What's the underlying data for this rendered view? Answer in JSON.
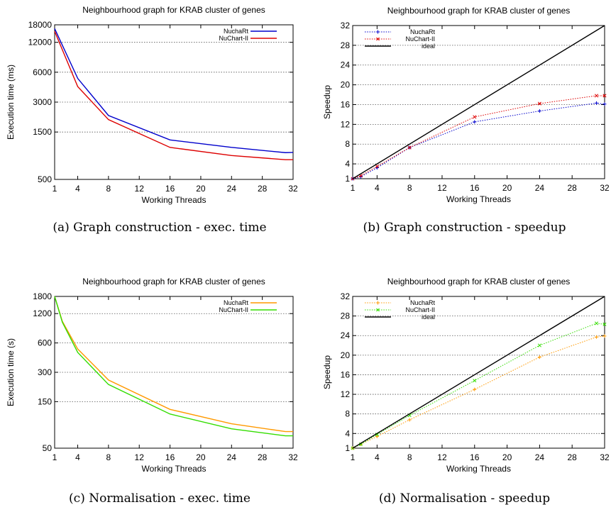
{
  "chart_data": [
    {
      "type": "line",
      "title": "Neighbourhood graph for KRAB cluster of genes",
      "xlabel": "Working Threads",
      "ylabel": "Execution time (ms)",
      "caption": "(a) Graph construction - exec. time",
      "yscale": "log",
      "xlim": [
        1,
        32
      ],
      "ylim": [
        500,
        18000
      ],
      "xticks": [
        1,
        4,
        8,
        12,
        16,
        20,
        24,
        28,
        32
      ],
      "yticks": [
        500,
        1500,
        3000,
        6000,
        12000,
        18000
      ],
      "grid": true,
      "legend_position": "top-right",
      "series": [
        {
          "name": "NuchaRt",
          "color": "#0000cc",
          "x": [
            1,
            4,
            8,
            16,
            24,
            31,
            32
          ],
          "y": [
            16500,
            5200,
            2200,
            1250,
            1050,
            930,
            935
          ]
        },
        {
          "name": "NuChart-II",
          "color": "#dd0000",
          "x": [
            1,
            4,
            8,
            16,
            24,
            31,
            32
          ],
          "y": [
            15500,
            4300,
            2000,
            1050,
            870,
            790,
            790
          ]
        }
      ]
    },
    {
      "type": "line",
      "title": "Neighbourhood graph for KRAB cluster of genes",
      "xlabel": "Working Threads",
      "ylabel": "Speedup",
      "caption": "(b) Graph construction - speedup",
      "yscale": "linear",
      "xlim": [
        1,
        32
      ],
      "ylim": [
        1,
        32
      ],
      "xticks": [
        1,
        4,
        8,
        12,
        16,
        20,
        24,
        28,
        32
      ],
      "yticks": [
        1,
        4,
        8,
        12,
        16,
        20,
        24,
        28,
        32
      ],
      "grid": true,
      "legend_position": "top-left",
      "series": [
        {
          "name": "NuchaRt",
          "color": "#0000cc",
          "style": "dotted",
          "marker": "+",
          "x": [
            1,
            2,
            4,
            8,
            16,
            24,
            31,
            32
          ],
          "y": [
            1,
            1.4,
            3.2,
            7.3,
            12.5,
            14.7,
            16.3,
            16.1
          ]
        },
        {
          "name": "NuChart-II",
          "color": "#dd0000",
          "style": "dotted",
          "marker": "x",
          "x": [
            1,
            2,
            4,
            8,
            16,
            24,
            31,
            32
          ],
          "y": [
            1,
            1.6,
            3.5,
            7.3,
            13.5,
            16.2,
            17.8,
            17.8
          ]
        },
        {
          "name": "ideal",
          "color": "#000000",
          "style": "solid",
          "x": [
            1,
            32
          ],
          "y": [
            1,
            32
          ]
        }
      ]
    },
    {
      "type": "line",
      "title": "Neighbourhood graph for KRAB cluster of genes",
      "xlabel": "Working Threads",
      "ylabel": "Execution time (s)",
      "caption": "(c) Normalisation - exec. time",
      "yscale": "log",
      "xlim": [
        1,
        32
      ],
      "ylim": [
        50,
        1800
      ],
      "xticks": [
        1,
        4,
        8,
        12,
        16,
        20,
        24,
        28,
        32
      ],
      "yticks": [
        50,
        150,
        300,
        600,
        1200,
        1800
      ],
      "grid": true,
      "legend_position": "top-right",
      "series": [
        {
          "name": "NuchaRt",
          "color": "#ff9900",
          "x": [
            1,
            2,
            4,
            8,
            16,
            24,
            31,
            32
          ],
          "y": [
            1800,
            1000,
            520,
            250,
            125,
            89,
            74,
            74
          ]
        },
        {
          "name": "NuChart-II",
          "color": "#33dd00",
          "x": [
            1,
            2,
            4,
            8,
            16,
            24,
            31,
            32
          ],
          "y": [
            1800,
            980,
            480,
            225,
            112,
            79,
            67,
            67
          ]
        }
      ]
    },
    {
      "type": "line",
      "title": "Neighbourhood graph for KRAB cluster of genes",
      "xlabel": "Working Threads",
      "ylabel": "Speedup",
      "caption": "(d) Normalisation - speedup",
      "yscale": "linear",
      "xlim": [
        1,
        32
      ],
      "ylim": [
        1,
        32
      ],
      "xticks": [
        1,
        4,
        8,
        12,
        16,
        20,
        24,
        28,
        32
      ],
      "yticks": [
        1,
        4,
        8,
        12,
        16,
        20,
        24,
        28,
        32
      ],
      "grid": true,
      "legend_position": "top-left",
      "series": [
        {
          "name": "NuchaRt",
          "color": "#ff9900",
          "style": "dotted",
          "marker": "+",
          "x": [
            1,
            2,
            4,
            8,
            16,
            24,
            31,
            32
          ],
          "y": [
            1,
            1.8,
            3.4,
            6.8,
            13,
            19.6,
            23.7,
            23.9
          ]
        },
        {
          "name": "NuChart-II",
          "color": "#33dd00",
          "style": "dotted",
          "marker": "x",
          "x": [
            1,
            2,
            4,
            8,
            16,
            24,
            31,
            32
          ],
          "y": [
            1,
            1.8,
            3.8,
            7.7,
            14.8,
            22,
            26.5,
            26.3
          ]
        },
        {
          "name": "ideal",
          "color": "#000000",
          "style": "solid",
          "x": [
            1,
            32
          ],
          "y": [
            1,
            32
          ]
        }
      ]
    }
  ]
}
